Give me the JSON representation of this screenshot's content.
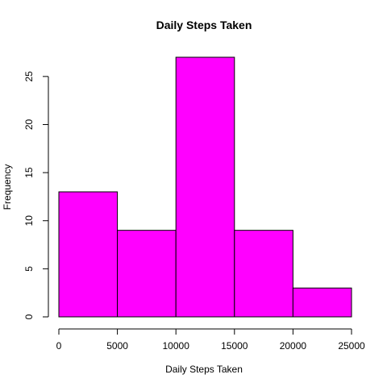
{
  "chart_data": {
    "type": "bar",
    "title": "Daily Steps Taken",
    "xlabel": "Daily Steps Taken",
    "ylabel": "Frequency",
    "bins": [
      {
        "start": 0,
        "end": 5000,
        "value": 13
      },
      {
        "start": 5000,
        "end": 10000,
        "value": 9
      },
      {
        "start": 10000,
        "end": 15000,
        "value": 27
      },
      {
        "start": 15000,
        "end": 20000,
        "value": 9
      },
      {
        "start": 20000,
        "end": 25000,
        "value": 3
      }
    ],
    "xlim": [
      0,
      25000
    ],
    "ylim": [
      0,
      27
    ],
    "x_ticks": [
      0,
      5000,
      10000,
      15000,
      20000,
      25000
    ],
    "y_ticks": [
      0,
      5,
      10,
      15,
      20,
      25
    ],
    "grid": false,
    "bar_color": "#ff00ff"
  }
}
